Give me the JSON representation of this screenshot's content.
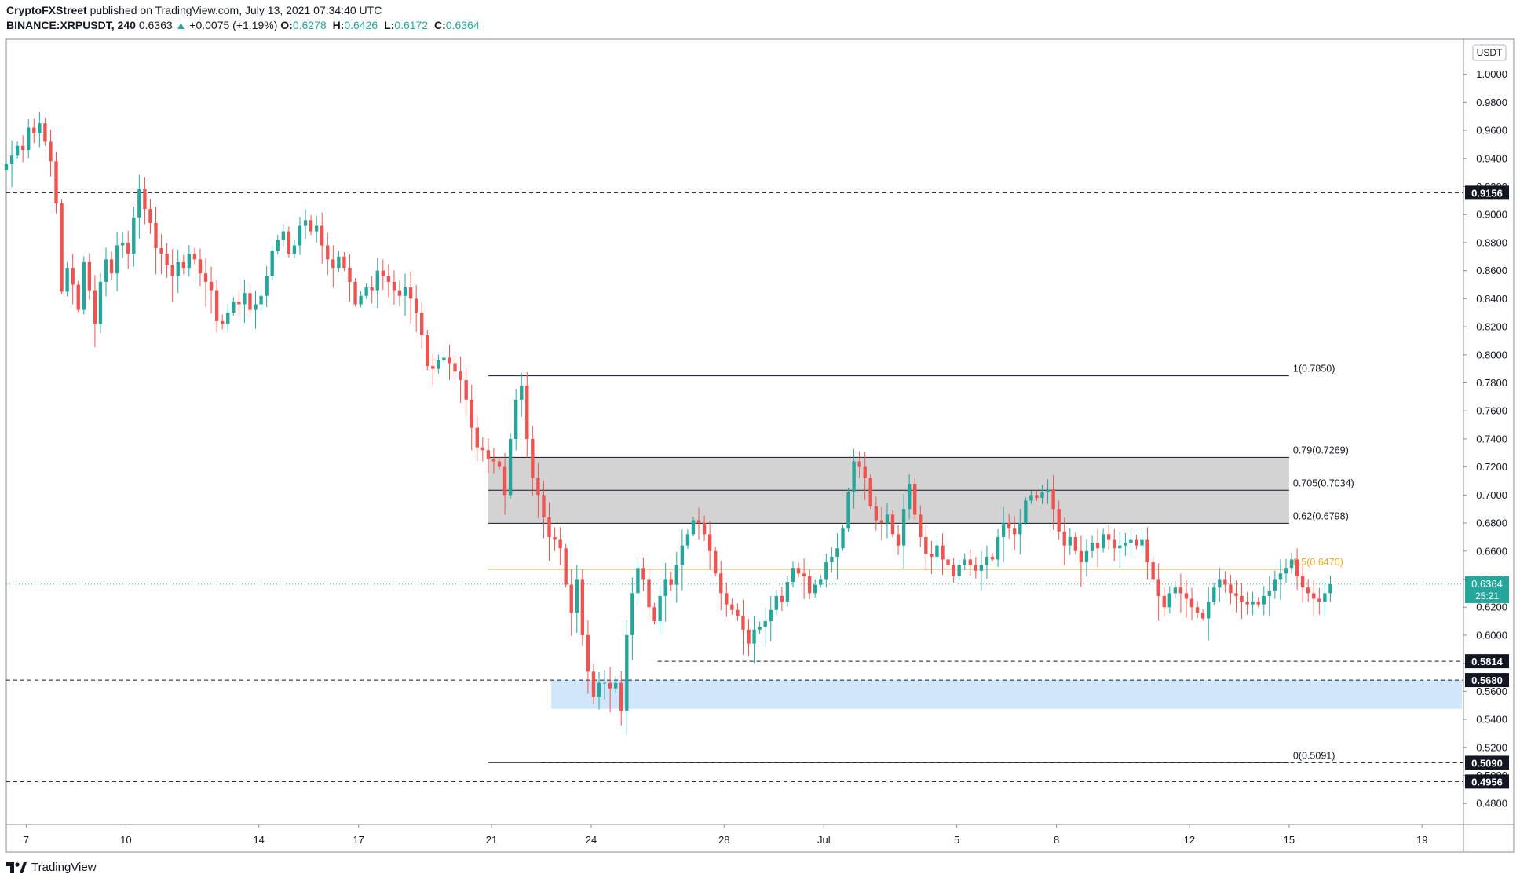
{
  "header": {
    "publisher": "CryptoFXStreet",
    "published_text": "published on TradingView.com, July 13, 2021 07:34:40 UTC",
    "symbol": "BINANCE:XRPUSDT, 240",
    "last": "0.6363",
    "change": "+0.0075 (+1.19%)",
    "o_label": "O:",
    "o_val": "0.6278",
    "h_label": "H:",
    "h_val": "0.6426",
    "l_label": "L:",
    "l_val": "0.6172",
    "c_label": "C:",
    "c_val": "0.6364"
  },
  "footer": {
    "brand": "TradingView"
  },
  "colors": {
    "up": "#26a69a",
    "down": "#ef5350",
    "fib_mid": "#f5a623",
    "zone_grey": "#c8c8c8",
    "zone_blue": "#cfe6fb",
    "price_tag": "#26a69a"
  },
  "chart_data": {
    "type": "candlestick",
    "currency_label": "USDT",
    "ylim": [
      0.465,
      1.025
    ],
    "y_ticks": [
      "1.0000",
      "0.9800",
      "0.9600",
      "0.9400",
      "0.9200",
      "0.9000",
      "0.8800",
      "0.8600",
      "0.8400",
      "0.8200",
      "0.8000",
      "0.7800",
      "0.7600",
      "0.7400",
      "0.7200",
      "0.7000",
      "0.6800",
      "0.6600",
      "0.6400",
      "0.6200",
      "0.6000",
      "0.5800",
      "0.5600",
      "0.5400",
      "0.5200",
      "0.5000",
      "0.4800"
    ],
    "x_ticks": [
      {
        "label": "7",
        "day": 7
      },
      {
        "label": "10",
        "day": 10
      },
      {
        "label": "14",
        "day": 14
      },
      {
        "label": "17",
        "day": 17
      },
      {
        "label": "21",
        "day": 21
      },
      {
        "label": "24",
        "day": 24
      },
      {
        "label": "28",
        "day": 28
      },
      {
        "label": "Jul",
        "day": 31
      },
      {
        "label": "5",
        "day": 35
      },
      {
        "label": "8",
        "day": 38
      },
      {
        "label": "12",
        "day": 42
      },
      {
        "label": "15",
        "day": 45
      },
      {
        "label": "19",
        "day": 49
      }
    ],
    "x_day_range": [
      6.4,
      50.2
    ],
    "horizontal_lines": [
      {
        "value": 0.9156,
        "label": "0.9156"
      },
      {
        "value": 0.5814,
        "label": "0.5814"
      },
      {
        "value": 0.568,
        "label": "0.5680"
      },
      {
        "value": 0.509,
        "label": "0.5090"
      },
      {
        "value": 0.4956,
        "label": "0.4956"
      }
    ],
    "current_price": {
      "value": 0.6364,
      "label": "0.6364",
      "countdown": "25:21"
    },
    "fibonacci": {
      "start_day": 20.9,
      "end_day": 45.0,
      "levels": [
        {
          "value": 0.785,
          "label": "1(0.7850)"
        },
        {
          "value": 0.7269,
          "label": "0.79(0.7269)"
        },
        {
          "value": 0.7034,
          "label": "0.705(0.7034)"
        },
        {
          "value": 0.6798,
          "label": "0.62(0.6798)"
        },
        {
          "value": 0.647,
          "label": "0.5(0.6470)"
        },
        {
          "value": 0.5091,
          "label": "0(0.5091)"
        }
      ]
    },
    "zones": [
      {
        "name": "fib-zone",
        "from_day": 20.9,
        "to_day": 45.0,
        "top": 0.7269,
        "bottom": 0.6798
      },
      {
        "name": "support-zone",
        "from_day": 22.8,
        "to_day": 50.2,
        "top": 0.568,
        "bottom": 0.5475
      }
    ],
    "candles": {
      "start_day": 6.4,
      "step_day": 0.1667,
      "close_path": [
        0.936,
        0.942,
        0.949,
        0.946,
        0.962,
        0.958,
        0.965,
        0.952,
        0.938,
        0.908,
        0.845,
        0.862,
        0.85,
        0.832,
        0.866,
        0.846,
        0.822,
        0.852,
        0.868,
        0.858,
        0.878,
        0.88,
        0.872,
        0.898,
        0.918,
        0.904,
        0.894,
        0.876,
        0.872,
        0.864,
        0.856,
        0.866,
        0.862,
        0.872,
        0.868,
        0.858,
        0.852,
        0.846,
        0.824,
        0.822,
        0.83,
        0.838,
        0.836,
        0.844,
        0.832,
        0.836,
        0.842,
        0.856,
        0.874,
        0.882,
        0.888,
        0.872,
        0.878,
        0.892,
        0.896,
        0.888,
        0.892,
        0.878,
        0.868,
        0.862,
        0.87,
        0.862,
        0.852,
        0.836,
        0.842,
        0.848,
        0.846,
        0.86,
        0.856,
        0.852,
        0.846,
        0.842,
        0.848,
        0.84,
        0.83,
        0.814,
        0.792,
        0.79,
        0.796,
        0.798,
        0.794,
        0.788,
        0.782,
        0.768,
        0.748,
        0.734,
        0.732,
        0.726,
        0.724,
        0.72,
        0.7,
        0.74,
        0.768,
        0.778,
        0.74,
        0.712,
        0.7,
        0.684,
        0.67,
        0.668,
        0.662,
        0.636,
        0.616,
        0.64,
        0.6,
        0.574,
        0.556,
        0.566,
        0.566,
        0.562,
        0.566,
        0.546,
        0.6,
        0.63,
        0.648,
        0.64,
        0.62,
        0.61,
        0.628,
        0.64,
        0.636,
        0.65,
        0.664,
        0.672,
        0.682,
        0.68,
        0.672,
        0.66,
        0.644,
        0.63,
        0.622,
        0.618,
        0.614,
        0.604,
        0.594,
        0.604,
        0.606,
        0.61,
        0.618,
        0.628,
        0.624,
        0.638,
        0.648,
        0.644,
        0.642,
        0.63,
        0.636,
        0.64,
        0.652,
        0.656,
        0.662,
        0.676,
        0.702,
        0.724,
        0.72,
        0.712,
        0.692,
        0.682,
        0.68,
        0.686,
        0.672,
        0.664,
        0.69,
        0.708,
        0.686,
        0.67,
        0.658,
        0.656,
        0.664,
        0.654,
        0.65,
        0.642,
        0.65,
        0.654,
        0.65,
        0.646,
        0.65,
        0.656,
        0.654,
        0.67,
        0.68,
        0.676,
        0.672,
        0.68,
        0.696,
        0.7,
        0.698,
        0.702,
        0.704,
        0.69,
        0.674,
        0.664,
        0.67,
        0.66,
        0.652,
        0.66,
        0.666,
        0.662,
        0.672,
        0.668,
        0.662,
        0.664,
        0.666,
        0.668,
        0.664,
        0.668,
        0.652,
        0.64,
        0.628,
        0.62,
        0.63,
        0.634,
        0.63,
        0.626,
        0.62,
        0.616,
        0.612,
        0.624,
        0.634,
        0.64,
        0.636,
        0.63,
        0.628,
        0.624,
        0.622,
        0.624,
        0.622,
        0.628,
        0.632,
        0.64,
        0.644,
        0.648,
        0.654,
        0.642,
        0.634,
        0.63,
        0.626,
        0.624,
        0.63,
        0.6364
      ]
    }
  }
}
